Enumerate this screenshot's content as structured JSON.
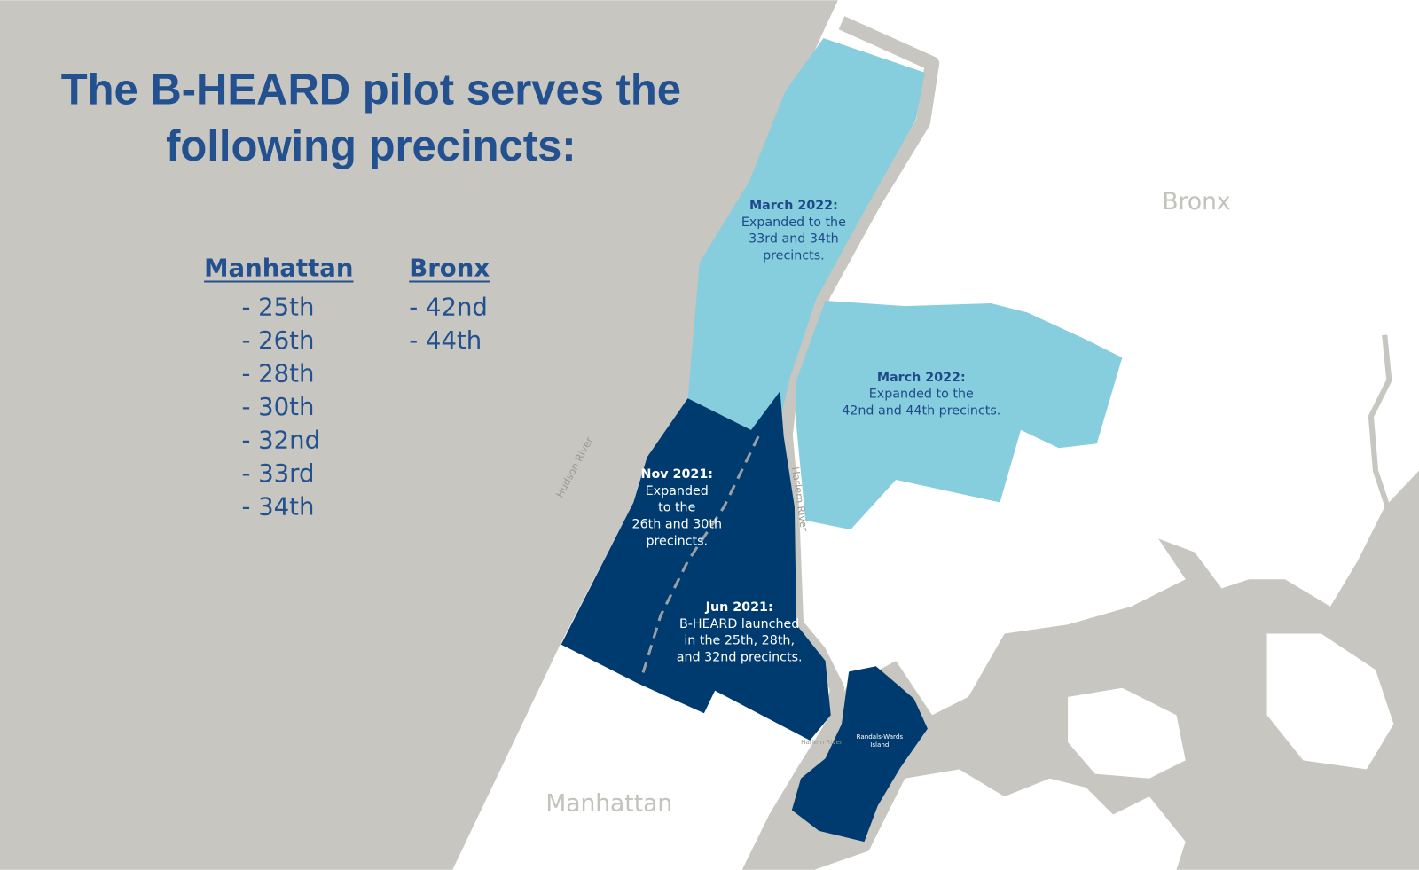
{
  "header": {
    "title_lines": [
      "The B-HEARD pilot serves the",
      "following precincts:"
    ]
  },
  "lists": [
    {
      "heading": "Manhattan",
      "items": [
        "- 25th",
        "- 26th",
        "- 28th",
        "- 30th",
        "- 32nd",
        "- 33rd",
        "- 34th"
      ]
    },
    {
      "heading": "Bronx",
      "items": [
        "- 42nd",
        "- 44th"
      ]
    }
  ],
  "map": {
    "annotations": [
      {
        "date": "March 2022:",
        "lines": [
          "Expanded to the",
          "33rd and 34th",
          "precincts."
        ]
      },
      {
        "date": "March 2022:",
        "lines": [
          "Expanded to the",
          "42nd and 44th precincts."
        ]
      },
      {
        "date": "Nov 2021:",
        "lines": [
          "Expanded",
          "to the",
          "26th and 30th",
          "precincts."
        ]
      },
      {
        "date": "Jun 2021:",
        "lines": [
          "B-HEARD launched",
          "in the 25th, 28th,",
          "and 32nd precincts."
        ]
      }
    ],
    "places": {
      "bronx": "Bronx",
      "manhattan": "Manhattan",
      "hudson": "Hudson River",
      "harlem_river_north": "Harlem River",
      "harlem_river_south": "Harlem River",
      "island_lines": [
        "Randals-Wards",
        "Island"
      ]
    }
  }
}
